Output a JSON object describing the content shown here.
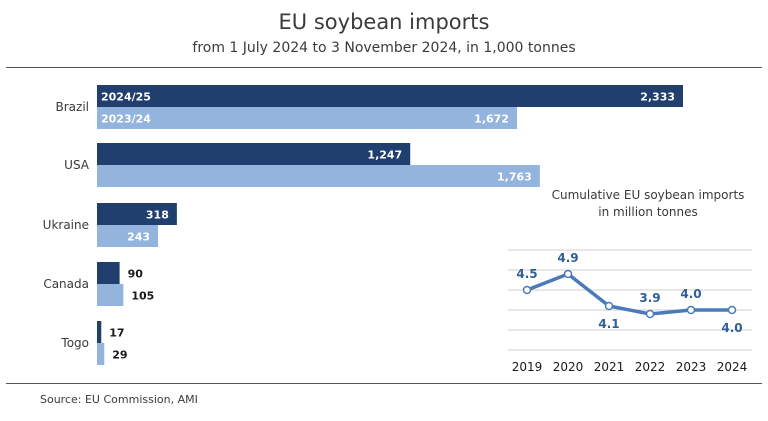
{
  "header": {
    "title": "EU soybean imports",
    "subtitle": "from 1 July 2024 to 3 November 2024, in 1,000 tonnes"
  },
  "source": "Source:  EU Commission, AMI",
  "colors": {
    "series_2024_25": "#213f6e",
    "series_2023_24": "#93b4dc",
    "line": "#4a7ab8",
    "grid": "#cfcfcf"
  },
  "chart_data": [
    {
      "type": "bar",
      "orientation": "horizontal",
      "title": "EU soybean imports",
      "subtitle": "from 1 July 2024 to 3 November 2024, in 1,000 tonnes",
      "categories": [
        "Brazil",
        "USA",
        "Ukraine",
        "Canada",
        "Togo"
      ],
      "series": [
        {
          "name": "2024/25",
          "values": [
            2333,
            1247,
            318,
            90,
            17
          ],
          "labels": [
            "2,333",
            "1,247",
            "318",
            "90",
            "17"
          ]
        },
        {
          "name": "2023/24",
          "values": [
            1672,
            1763,
            243,
            105,
            29
          ],
          "labels": [
            "1,672",
            "1,763",
            "243",
            "105",
            "29"
          ]
        }
      ],
      "xlim": [
        0,
        2500
      ],
      "grid": false,
      "legend": "inside first bars"
    },
    {
      "type": "line",
      "title": "Cumulative EU soybean imports\nin million tonnes",
      "title_lines": [
        "Cumulative EU soybean imports",
        "in million tonnes"
      ],
      "x": [
        "2019",
        "2020",
        "2021",
        "2022",
        "2023",
        "2024"
      ],
      "series": [
        {
          "values": [
            4.5,
            4.9,
            4.1,
            3.9,
            4.0,
            4.0
          ],
          "labels": [
            "4.5",
            "4.9",
            "4.1",
            "3.9",
            "4.0",
            "4.0"
          ]
        }
      ],
      "ylim": [
        3.0,
        5.5
      ],
      "grid": true
    }
  ]
}
